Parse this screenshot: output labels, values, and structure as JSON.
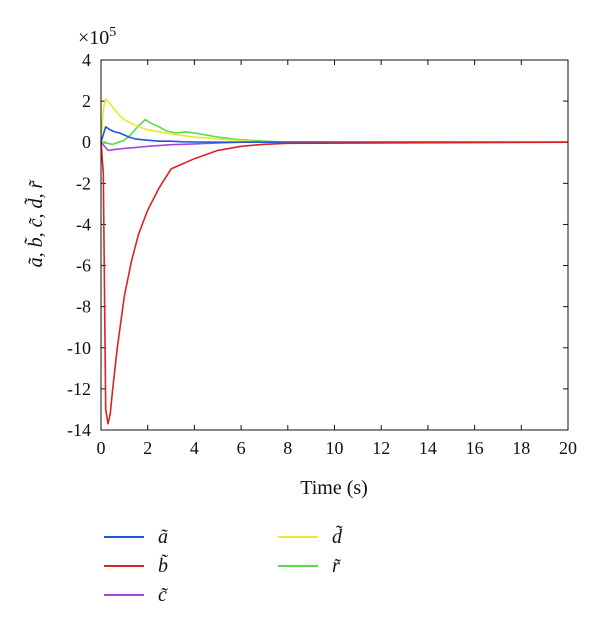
{
  "chart_data": {
    "type": "line",
    "xlabel": "Time (s)",
    "ylabel": "ã, b̃, c̃, d̃, r̃",
    "y_multiplier_label": "×10",
    "y_multiplier_exponent": "5",
    "xlim": [
      0,
      20
    ],
    "ylim": [
      -14,
      4
    ],
    "x_ticks": [
      0,
      2,
      4,
      6,
      8,
      10,
      12,
      14,
      16,
      18,
      20
    ],
    "y_ticks": [
      4,
      2,
      0,
      -2,
      -4,
      -6,
      -8,
      -10,
      -12,
      -14
    ],
    "grid": false,
    "legend_position": "below-plot",
    "series": [
      {
        "name": "ã",
        "color": "#2255dd",
        "x": [
          0,
          0.2,
          0.4,
          0.6,
          0.8,
          1.0,
          1.2,
          1.5,
          2.0,
          2.5,
          3.0,
          3.5,
          4.0,
          5.0,
          6.0,
          20.0
        ],
        "y": [
          0,
          0.75,
          0.6,
          0.5,
          0.45,
          0.35,
          0.25,
          0.15,
          0.1,
          0.05,
          0.05,
          0.02,
          0.01,
          0,
          0,
          0
        ]
      },
      {
        "name": "b̃",
        "color": "#dd2222",
        "x": [
          0,
          0.1,
          0.2,
          0.3,
          0.4,
          0.5,
          0.7,
          1.0,
          1.3,
          1.6,
          2.0,
          2.5,
          3.0,
          4.0,
          5.0,
          6.0,
          7.0,
          8.0,
          20.0
        ],
        "y": [
          0,
          -1.5,
          -13.0,
          -13.7,
          -13.2,
          -12.0,
          -10.0,
          -7.5,
          -5.8,
          -4.5,
          -3.3,
          -2.2,
          -1.3,
          -0.8,
          -0.4,
          -0.2,
          -0.1,
          -0.05,
          0
        ]
      },
      {
        "name": "c̃",
        "color": "#aa44dd",
        "x": [
          0,
          0.3,
          0.6,
          1.0,
          1.5,
          2.0,
          3.0,
          4.0,
          5.0,
          6.0,
          20.0
        ],
        "y": [
          0,
          -0.4,
          -0.35,
          -0.3,
          -0.25,
          -0.2,
          -0.12,
          -0.08,
          -0.04,
          0,
          0
        ]
      },
      {
        "name": "d̃",
        "color": "#e8e833",
        "x": [
          0,
          0.1,
          0.2,
          0.3,
          0.5,
          0.8,
          1.0,
          1.5,
          2.0,
          2.5,
          3.0,
          4.0,
          5.0,
          6.0,
          7.0,
          20.0
        ],
        "y": [
          0,
          1.6,
          2.1,
          2.0,
          1.7,
          1.3,
          1.1,
          0.8,
          0.6,
          0.5,
          0.4,
          0.25,
          0.15,
          0.08,
          0,
          0
        ]
      },
      {
        "name": "r̃",
        "color": "#55dd44",
        "x": [
          0,
          0.5,
          1.0,
          1.3,
          1.6,
          1.9,
          2.1,
          2.4,
          2.8,
          3.2,
          3.6,
          4.0,
          4.5,
          5.0,
          5.5,
          6.0,
          7.0,
          8.0,
          20.0
        ],
        "y": [
          0,
          -0.1,
          0.1,
          0.4,
          0.8,
          1.1,
          0.95,
          0.8,
          0.55,
          0.45,
          0.5,
          0.45,
          0.35,
          0.25,
          0.18,
          0.12,
          0.05,
          0,
          0
        ]
      }
    ]
  }
}
